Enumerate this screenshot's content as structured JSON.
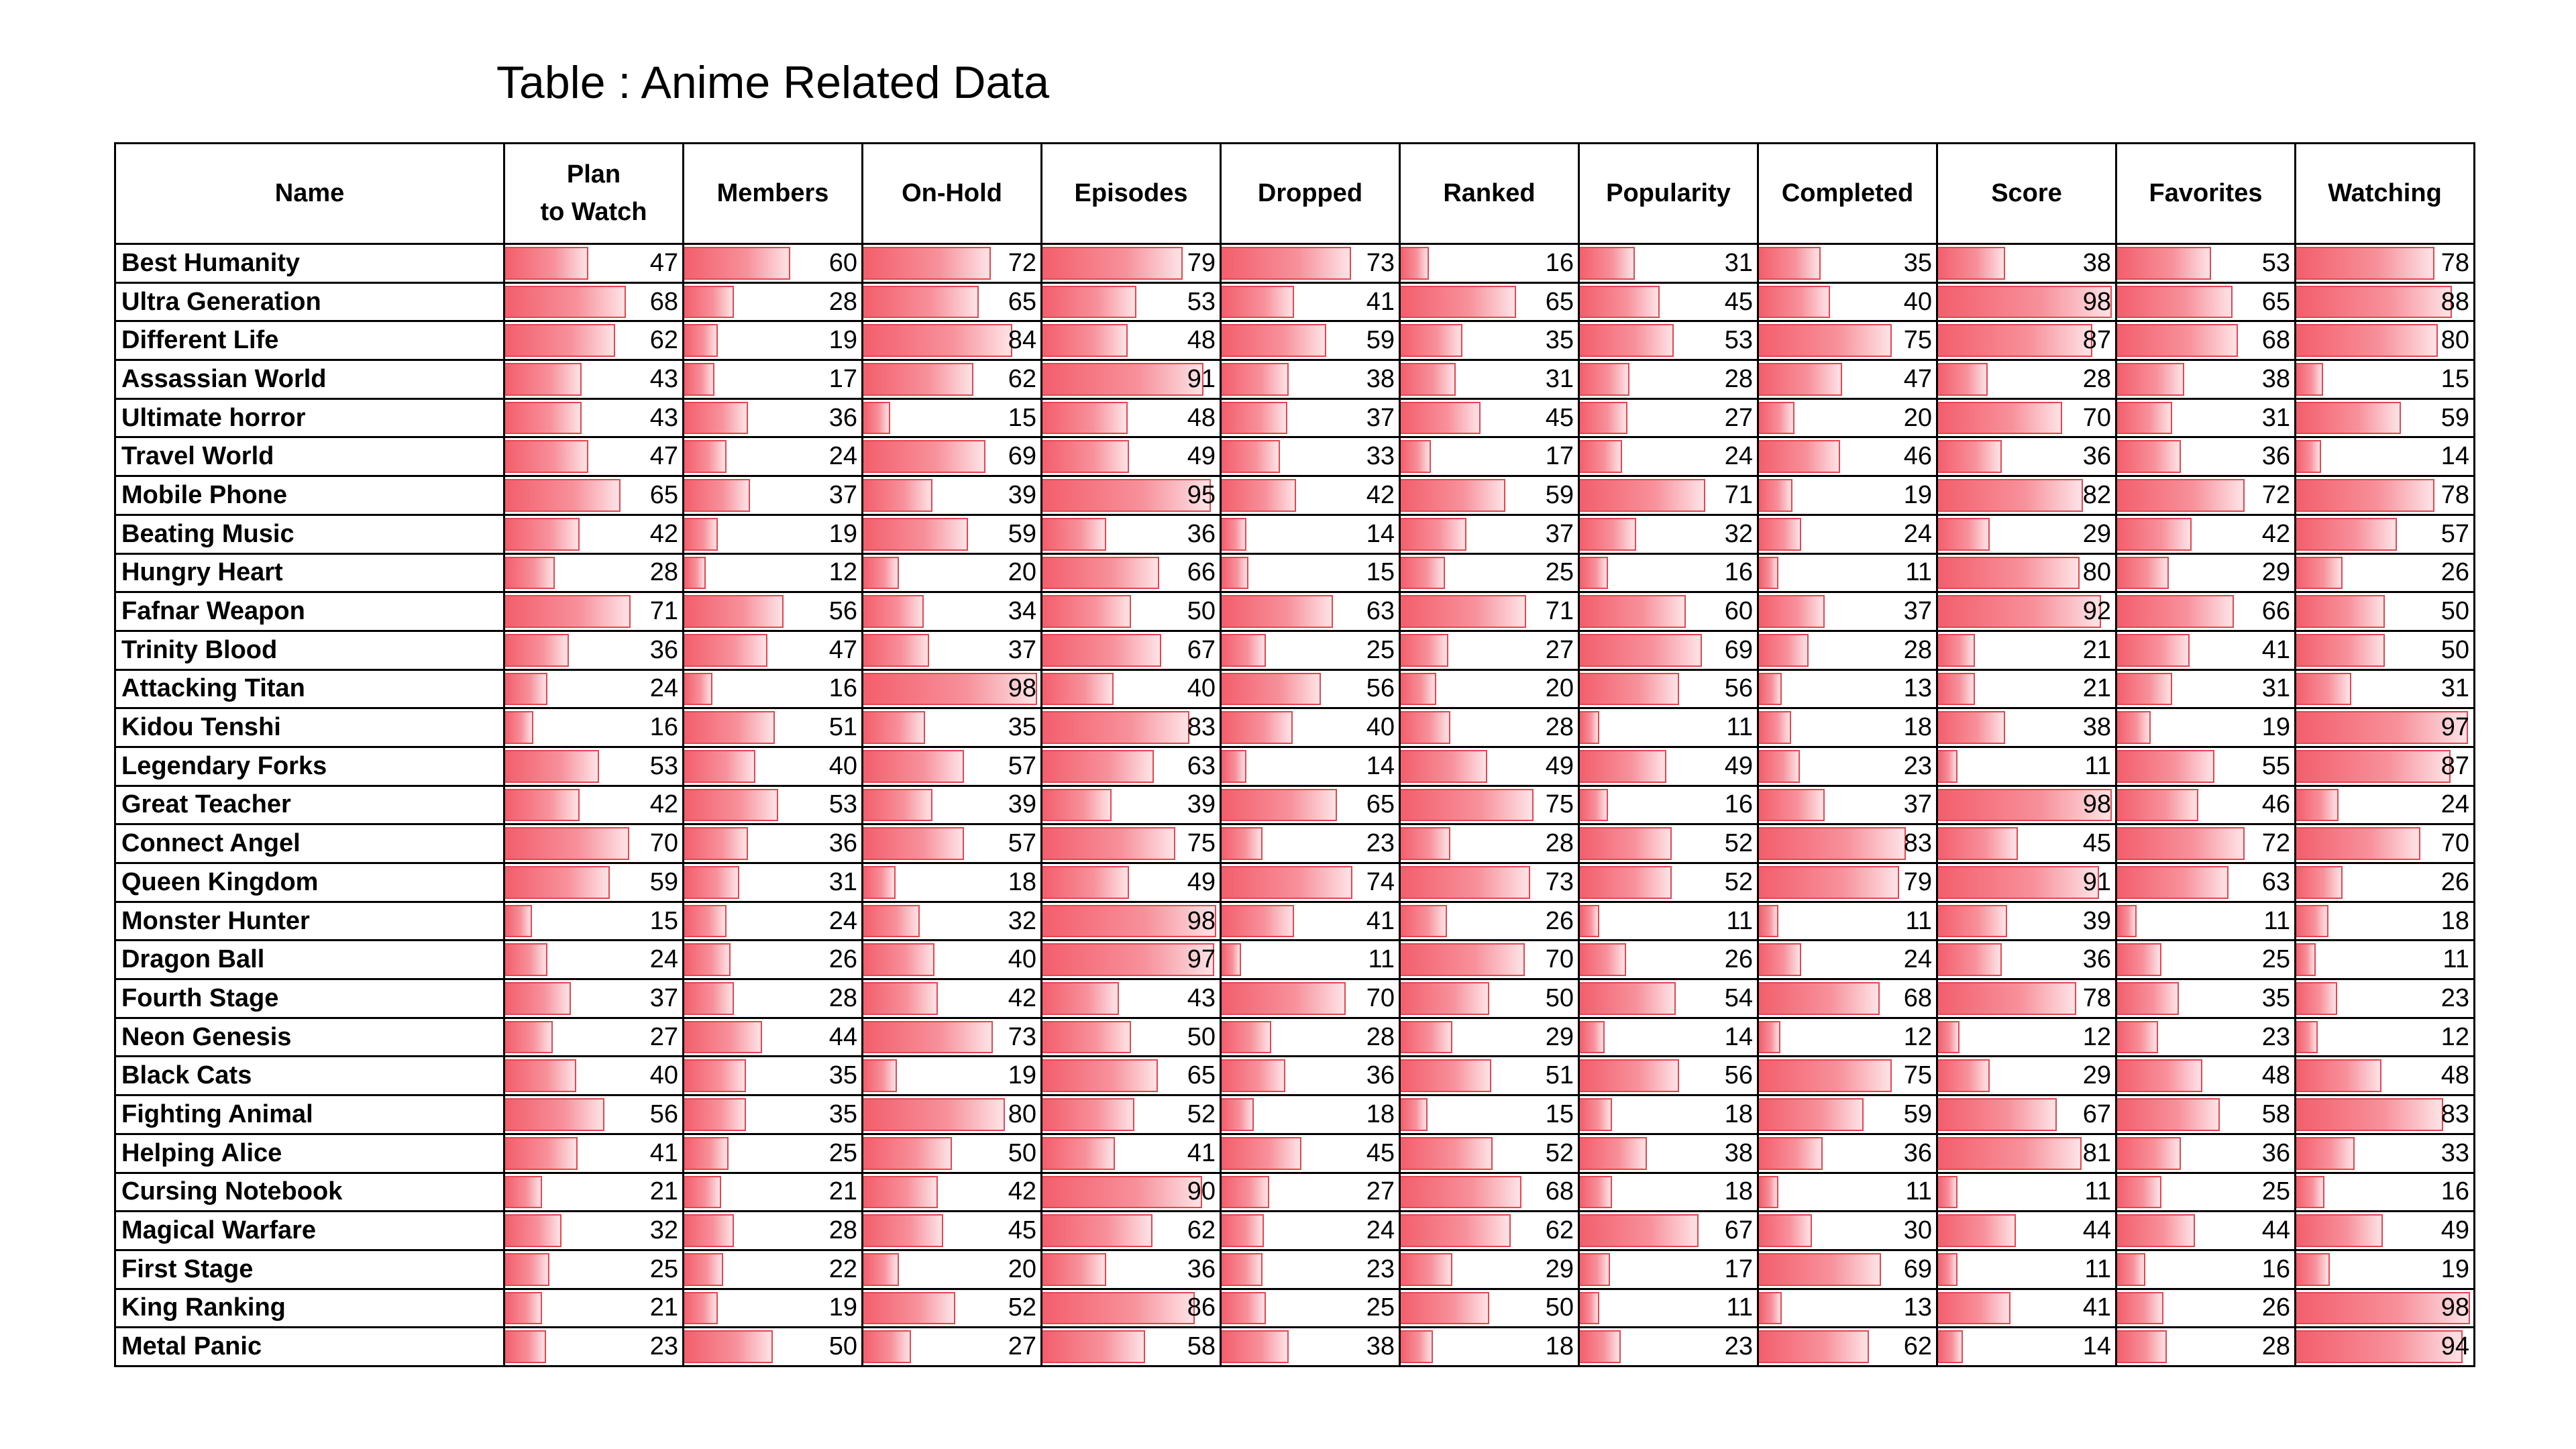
{
  "title": "Table : Anime Related Data",
  "chart_data": {
    "type": "table",
    "title": "Table : Anime Related Data",
    "columns": [
      "Name",
      "Plan\nto Watch",
      "Members",
      "On-Hold",
      "Episodes",
      "Dropped",
      "Ranked",
      "Popularity",
      "Completed",
      "Score",
      "Favorites",
      "Watching"
    ],
    "rows": [
      {
        "name": "Best Humanity",
        "values": [
          47,
          60,
          72,
          79,
          73,
          16,
          31,
          35,
          38,
          53,
          78
        ]
      },
      {
        "name": "Ultra Generation",
        "values": [
          68,
          28,
          65,
          53,
          41,
          65,
          45,
          40,
          98,
          65,
          88
        ]
      },
      {
        "name": "Different Life",
        "values": [
          62,
          19,
          84,
          48,
          59,
          35,
          53,
          75,
          87,
          68,
          80
        ]
      },
      {
        "name": "Assassian World",
        "values": [
          43,
          17,
          62,
          91,
          38,
          31,
          28,
          47,
          28,
          38,
          15
        ]
      },
      {
        "name": "Ultimate horror",
        "values": [
          43,
          36,
          15,
          48,
          37,
          45,
          27,
          20,
          70,
          31,
          59
        ]
      },
      {
        "name": "Travel World",
        "values": [
          47,
          24,
          69,
          49,
          33,
          17,
          24,
          46,
          36,
          36,
          14
        ]
      },
      {
        "name": "Mobile Phone",
        "values": [
          65,
          37,
          39,
          95,
          42,
          59,
          71,
          19,
          82,
          72,
          78
        ]
      },
      {
        "name": "Beating Music",
        "values": [
          42,
          19,
          59,
          36,
          14,
          37,
          32,
          24,
          29,
          42,
          57
        ]
      },
      {
        "name": "Hungry Heart",
        "values": [
          28,
          12,
          20,
          66,
          15,
          25,
          16,
          11,
          80,
          29,
          26
        ]
      },
      {
        "name": "Fafnar Weapon",
        "values": [
          71,
          56,
          34,
          50,
          63,
          71,
          60,
          37,
          92,
          66,
          50
        ]
      },
      {
        "name": "Trinity Blood",
        "values": [
          36,
          47,
          37,
          67,
          25,
          27,
          69,
          28,
          21,
          41,
          50
        ]
      },
      {
        "name": "Attacking Titan",
        "values": [
          24,
          16,
          98,
          40,
          56,
          20,
          56,
          13,
          21,
          31,
          31
        ]
      },
      {
        "name": "Kidou Tenshi",
        "values": [
          16,
          51,
          35,
          83,
          40,
          28,
          11,
          18,
          38,
          19,
          97
        ]
      },
      {
        "name": "Legendary Forks",
        "values": [
          53,
          40,
          57,
          63,
          14,
          49,
          49,
          23,
          11,
          55,
          87
        ]
      },
      {
        "name": "Great Teacher",
        "values": [
          42,
          53,
          39,
          39,
          65,
          75,
          16,
          37,
          98,
          46,
          24
        ]
      },
      {
        "name": "Connect Angel",
        "values": [
          70,
          36,
          57,
          75,
          23,
          28,
          52,
          83,
          45,
          72,
          70
        ]
      },
      {
        "name": "Queen Kingdom",
        "values": [
          59,
          31,
          18,
          49,
          74,
          73,
          52,
          79,
          91,
          63,
          26
        ]
      },
      {
        "name": "Monster Hunter",
        "values": [
          15,
          24,
          32,
          98,
          41,
          26,
          11,
          11,
          39,
          11,
          18
        ]
      },
      {
        "name": "Dragon Ball",
        "values": [
          24,
          26,
          40,
          97,
          11,
          70,
          26,
          24,
          36,
          25,
          11
        ]
      },
      {
        "name": "Fourth Stage",
        "values": [
          37,
          28,
          42,
          43,
          70,
          50,
          54,
          68,
          78,
          35,
          23
        ]
      },
      {
        "name": "Neon Genesis",
        "values": [
          27,
          44,
          73,
          50,
          28,
          29,
          14,
          12,
          12,
          23,
          12
        ]
      },
      {
        "name": "Black Cats",
        "values": [
          40,
          35,
          19,
          65,
          36,
          51,
          56,
          75,
          29,
          48,
          48
        ]
      },
      {
        "name": "Fighting Animal",
        "values": [
          56,
          35,
          80,
          52,
          18,
          15,
          18,
          59,
          67,
          58,
          83
        ]
      },
      {
        "name": "Helping Alice",
        "values": [
          41,
          25,
          50,
          41,
          45,
          52,
          38,
          36,
          81,
          36,
          33
        ]
      },
      {
        "name": "Cursing Notebook",
        "values": [
          21,
          21,
          42,
          90,
          27,
          68,
          18,
          11,
          11,
          25,
          16
        ]
      },
      {
        "name": "Magical Warfare",
        "values": [
          32,
          28,
          45,
          62,
          24,
          62,
          67,
          30,
          44,
          44,
          49
        ]
      },
      {
        "name": "First Stage",
        "values": [
          25,
          22,
          20,
          36,
          23,
          29,
          17,
          69,
          11,
          16,
          19
        ]
      },
      {
        "name": "King Ranking",
        "values": [
          21,
          19,
          52,
          86,
          25,
          50,
          11,
          13,
          41,
          26,
          98
        ]
      },
      {
        "name": "Metal Panic",
        "values": [
          23,
          50,
          27,
          58,
          38,
          18,
          23,
          62,
          14,
          28,
          94
        ]
      }
    ],
    "bar_color": "#f35e6c",
    "bar_scale_max": 100
  }
}
